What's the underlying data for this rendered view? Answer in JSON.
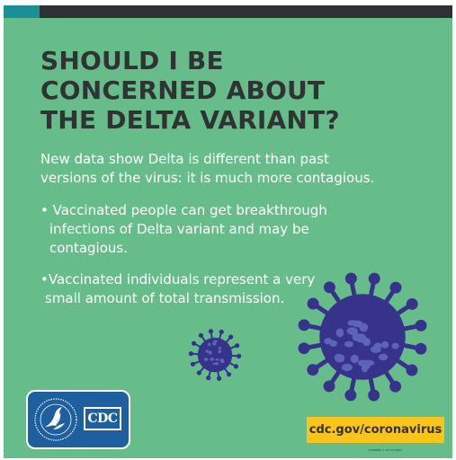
{
  "headline": {
    "line1": "SHOULD I BE",
    "line2": "CONCERNED ABOUT",
    "line3": "THE DELTA VARIANT?"
  },
  "intro": {
    "line1": "New data show Delta is different than past",
    "line2": "versions of the virus: it is much more contagious."
  },
  "bullets": [
    {
      "line1": "• Vaccinated people can get breakthrough",
      "line2": "infections of Delta variant and may be",
      "line3": "contagious."
    },
    {
      "line1": "•Vaccinated individuals represent a very",
      "line2": "small amount of total transmission."
    }
  ],
  "logo": {
    "cdc_text": "CDC"
  },
  "footer": {
    "url": "cdc.gov/coronavirus",
    "code": "CS329895-A 07/27/2021"
  },
  "colors": {
    "background": "#67bd8a",
    "headline": "#2f3334",
    "body_text": "#ffffff",
    "virus": "#37338a",
    "virus_spots": "#5d64b8",
    "badge": "#fbc41b",
    "logo_blue": "#1e5fa0"
  },
  "icons": {
    "virus_large": "coronavirus-icon",
    "virus_small": "coronavirus-icon",
    "hhs_logo": "hhs-eagle-icon"
  }
}
